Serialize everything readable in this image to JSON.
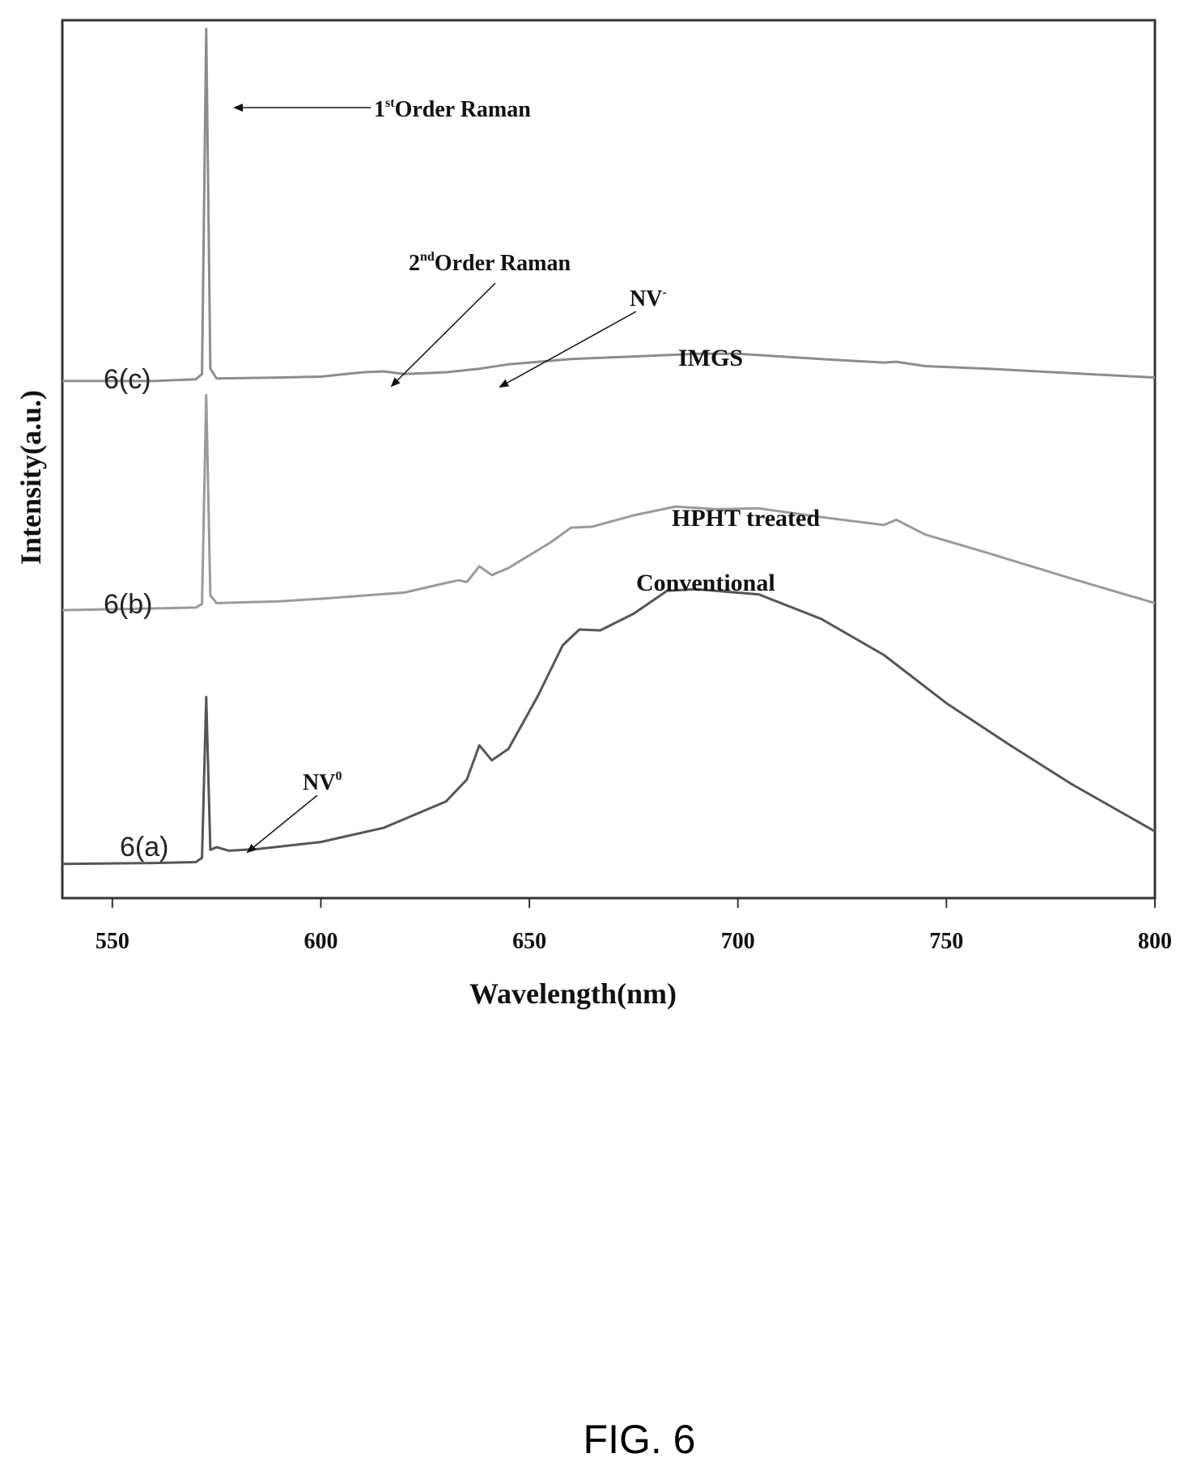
{
  "figure_caption": "FIG. 6",
  "chart_data": {
    "type": "line",
    "title": "",
    "xlabel": "Wavelength(nm)",
    "ylabel": "Intensity(a.u.)",
    "xlim": [
      538,
      800
    ],
    "ylim": [
      0,
      1
    ],
    "xticks": [
      550,
      600,
      650,
      700,
      750,
      800
    ],
    "xtick_labels": [
      "550",
      "600",
      "650",
      "700",
      "750",
      "800"
    ],
    "grid": false,
    "series": [
      {
        "name": "6(c)",
        "annotation": "IMGS",
        "color": "#8c8c8c",
        "points": [
          [
            538,
            0.589
          ],
          [
            560,
            0.589
          ],
          [
            570,
            0.591
          ],
          [
            571.5,
            0.597
          ],
          [
            572.5,
            0.99
          ],
          [
            573.5,
            0.603
          ],
          [
            575,
            0.592
          ],
          [
            590,
            0.593
          ],
          [
            600,
            0.594
          ],
          [
            610,
            0.599
          ],
          [
            615,
            0.6
          ],
          [
            620,
            0.597
          ],
          [
            630,
            0.599
          ],
          [
            638,
            0.603
          ],
          [
            645,
            0.608
          ],
          [
            660,
            0.614
          ],
          [
            680,
            0.618
          ],
          [
            690,
            0.62
          ],
          [
            700,
            0.62
          ],
          [
            720,
            0.614
          ],
          [
            735,
            0.61
          ],
          [
            738,
            0.611
          ],
          [
            745,
            0.606
          ],
          [
            760,
            0.603
          ],
          [
            780,
            0.598
          ],
          [
            800,
            0.593
          ]
        ]
      },
      {
        "name": "6(b)",
        "annotation": "HPHT treated",
        "color": "#9a9a9a",
        "points": [
          [
            538,
            0.328
          ],
          [
            560,
            0.33
          ],
          [
            570,
            0.331
          ],
          [
            571.5,
            0.335
          ],
          [
            572.5,
            0.573
          ],
          [
            573.5,
            0.345
          ],
          [
            575,
            0.336
          ],
          [
            590,
            0.338
          ],
          [
            600,
            0.341
          ],
          [
            620,
            0.348
          ],
          [
            630,
            0.359
          ],
          [
            633,
            0.362
          ],
          [
            635,
            0.36
          ],
          [
            638,
            0.378
          ],
          [
            641,
            0.368
          ],
          [
            645,
            0.376
          ],
          [
            655,
            0.405
          ],
          [
            660,
            0.422
          ],
          [
            665,
            0.423
          ],
          [
            675,
            0.436
          ],
          [
            685,
            0.446
          ],
          [
            695,
            0.443
          ],
          [
            705,
            0.444
          ],
          [
            720,
            0.434
          ],
          [
            730,
            0.428
          ],
          [
            735,
            0.425
          ],
          [
            738,
            0.431
          ],
          [
            745,
            0.414
          ],
          [
            760,
            0.393
          ],
          [
            780,
            0.364
          ],
          [
            800,
            0.336
          ]
        ]
      },
      {
        "name": "6(a)",
        "annotation": "Conventional",
        "color": "#555555",
        "points": [
          [
            538,
            0.039
          ],
          [
            560,
            0.04
          ],
          [
            570,
            0.041
          ],
          [
            571.5,
            0.046
          ],
          [
            572.5,
            0.229
          ],
          [
            573.5,
            0.055
          ],
          [
            575,
            0.058
          ],
          [
            578,
            0.054
          ],
          [
            585,
            0.056
          ],
          [
            600,
            0.064
          ],
          [
            615,
            0.08
          ],
          [
            630,
            0.11
          ],
          [
            635,
            0.135
          ],
          [
            638,
            0.174
          ],
          [
            641,
            0.157
          ],
          [
            645,
            0.17
          ],
          [
            652,
            0.23
          ],
          [
            658,
            0.288
          ],
          [
            662,
            0.306
          ],
          [
            667,
            0.305
          ],
          [
            675,
            0.324
          ],
          [
            683,
            0.35
          ],
          [
            690,
            0.352
          ],
          [
            697,
            0.349
          ],
          [
            705,
            0.346
          ],
          [
            720,
            0.318
          ],
          [
            735,
            0.277
          ],
          [
            750,
            0.222
          ],
          [
            765,
            0.175
          ],
          [
            780,
            0.13
          ],
          [
            800,
            0.076
          ]
        ]
      }
    ],
    "annotations": [
      "1st Order Raman",
      "2nd Order Raman",
      "NV-",
      "NV0"
    ]
  },
  "labels": {
    "series_c": "6(c)",
    "series_b": "6(b)",
    "series_a": "6(a)",
    "imgs": "IMGS",
    "hpht": "HPHT treated",
    "conventional": "Conventional",
    "raman1_base": "1",
    "raman1_sup": "st",
    "raman1_rest": "Order Raman",
    "raman2_base": "2",
    "raman2_sup": "nd",
    "raman2_rest": "Order Raman",
    "nvminus_base": "NV",
    "nvminus_sup": "-",
    "nv0_base": "NV",
    "nv0_sup": "0"
  }
}
